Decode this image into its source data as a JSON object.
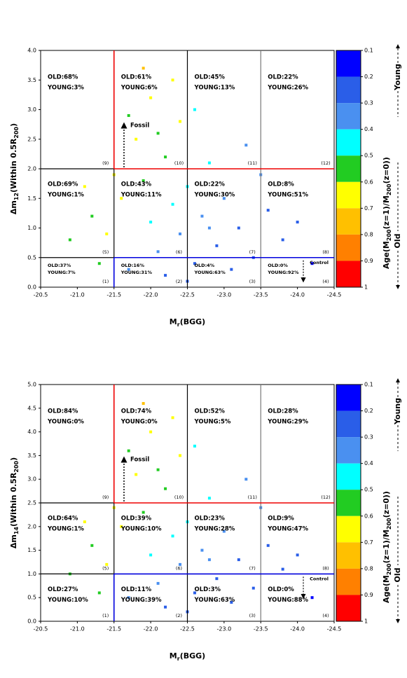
{
  "chart_data": [
    {
      "type": "scatter",
      "x_label": [
        "M",
        "r",
        "(BGG)"
      ],
      "y_label": [
        "Δm",
        "12",
        "(Within 0.5R",
        "200",
        ")"
      ],
      "xlim": [
        -20.5,
        -24.5
      ],
      "xticks": [
        {
          "value": -20.5,
          "label": "-20.5"
        },
        {
          "value": -21,
          "label": "-21.0"
        },
        {
          "value": -21.5,
          "label": "-21.5"
        },
        {
          "value": -22,
          "label": "-22.0"
        },
        {
          "value": -22.5,
          "label": "-22.5"
        },
        {
          "value": -23,
          "label": "-23.0"
        },
        {
          "value": -23.5,
          "label": "-23.5"
        },
        {
          "value": -24,
          "label": "-24.0"
        },
        {
          "value": -24.5,
          "label": "-24.5"
        }
      ],
      "ylim": [
        0,
        4
      ],
      "yticks": [
        {
          "value": 0,
          "label": "0.0"
        },
        0.5,
        {
          "value": 1,
          "label": "1.0"
        },
        1.5,
        {
          "value": 2,
          "label": "2.0"
        },
        2.5,
        {
          "value": 3,
          "label": "3.0"
        },
        3.5,
        {
          "value": 4,
          "label": "4.0"
        }
      ],
      "x": [
        -21.2,
        -21.4,
        -21.6,
        -21.7,
        -21.8,
        -21.9,
        -22.0,
        -22.0,
        -22.1,
        -22.2,
        -22.2,
        -22.3,
        -22.4,
        -22.4,
        -22.5,
        -22.6,
        -22.7,
        -22.8,
        -22.9,
        -23.0,
        -23.1,
        -23.2,
        -23.3,
        -23.4,
        -23.6,
        -23.8,
        -24.0,
        -24.2,
        -21.9,
        -22.3,
        -21.7,
        -22.6,
        -21.3,
        -21.1,
        -20.9,
        -21.5,
        -22.1,
        -22.8,
        -23.5,
        -22.5
      ],
      "y": [
        1.2,
        0.9,
        1.5,
        0.3,
        2.5,
        1.8,
        3.2,
        1.1,
        0.6,
        2.2,
        0.2,
        1.4,
        2.8,
        0.9,
        1.7,
        0.4,
        1.2,
        2.1,
        0.7,
        1.5,
        0.3,
        1.0,
        2.4,
        0.5,
        1.3,
        0.8,
        1.1,
        0.4,
        3.7,
        3.5,
        2.9,
        3.0,
        0.4,
        1.7,
        0.8,
        1.9,
        2.6,
        1.0,
        1.9,
        0.1
      ],
      "age": [
        0.55,
        0.6,
        0.65,
        0.35,
        0.6,
        0.5,
        0.65,
        0.45,
        0.3,
        0.55,
        0.25,
        0.4,
        0.6,
        0.35,
        0.45,
        0.2,
        0.3,
        0.4,
        0.25,
        0.3,
        0.2,
        0.25,
        0.35,
        0.2,
        0.25,
        0.2,
        0.2,
        0.15,
        0.7,
        0.6,
        0.55,
        0.45,
        0.5,
        0.6,
        0.55,
        0.6,
        0.5,
        0.3,
        0.3,
        0.2
      ],
      "regions": [
        {
          "id": "(1)",
          "old": "OLD:37%",
          "young": "YOUNG:7%"
        },
        {
          "id": "(2)",
          "old": "OLD:16%",
          "young": "YOUNG:31%"
        },
        {
          "id": "(3)",
          "old": "OLD:4%",
          "young": "YOUNG:63%"
        },
        {
          "id": "(4)",
          "old": "OLD:0%",
          "young": "YOUNG:92%"
        },
        {
          "id": "(5)",
          "old": "OLD:69%",
          "young": "YOUNG:1%"
        },
        {
          "id": "(6)",
          "old": "OLD:43%",
          "young": "YOUNG:11%"
        },
        {
          "id": "(7)",
          "old": "OLD:22%",
          "young": "YOUNG:30%"
        },
        {
          "id": "(8)",
          "old": "OLD:8%",
          "young": "YOUNG:51%"
        },
        {
          "id": "(9)",
          "old": "OLD:68%",
          "young": "YOUNG:3%"
        },
        {
          "id": "(10)",
          "old": "OLD:61%",
          "young": "YOUNG:6%"
        },
        {
          "id": "(11)",
          "old": "OLD:45%",
          "young": "YOUNG:13%"
        },
        {
          "id": "(12)",
          "old": "OLD:22%",
          "young": "YOUNG:26%"
        }
      ],
      "fossil": "Fossil",
      "control": "Control",
      "colorbar": {
        "label": [
          "Age(M",
          "200",
          "(z=1)/M",
          "200",
          "(z=0))"
        ],
        "young": "Young",
        "old": "Old",
        "lim": [
          0.1,
          1
        ],
        "ticks": [
          0.1,
          0.2,
          0.3,
          0.4,
          0.5,
          0.6,
          0.7,
          0.8,
          0.9,
          1
        ],
        "colors": [
          "#0000ff",
          "#2a5ee8",
          "#4a90f0",
          "#00ffff",
          "#22cc22",
          "#ffff00",
          "#ffc000",
          "#ff8000",
          "#ff0000"
        ]
      }
    },
    {
      "type": "scatter",
      "x_label": [
        "M",
        "r",
        "(BGG)"
      ],
      "y_label": [
        "Δm",
        "14",
        "(Within 0.5R",
        "200",
        ")"
      ],
      "xlim": [
        -20.5,
        -24.5
      ],
      "xticks": [
        {
          "value": -20.5,
          "label": "-20.5"
        },
        {
          "value": -21,
          "label": "-21.0"
        },
        {
          "value": -21.5,
          "label": "-21.5"
        },
        {
          "value": -22,
          "label": "-22.0"
        },
        {
          "value": -22.5,
          "label": "-22.5"
        },
        {
          "value": -23,
          "label": "-23.0"
        },
        {
          "value": -23.5,
          "label": "-23.5"
        },
        {
          "value": -24,
          "label": "-24.0"
        },
        {
          "value": -24.5,
          "label": "-24.5"
        }
      ],
      "ylim": [
        0,
        5
      ],
      "yticks": [
        {
          "value": 0,
          "label": "0.0"
        },
        0.5,
        {
          "value": 1,
          "label": "1.0"
        },
        1.5,
        {
          "value": 2,
          "label": "2.0"
        },
        2.5,
        {
          "value": 3,
          "label": "3.0"
        },
        3.5,
        {
          "value": 4,
          "label": "4.0"
        },
        4.5,
        {
          "value": 5,
          "label": "5.0"
        }
      ],
      "x": [
        -21.2,
        -21.4,
        -21.6,
        -21.7,
        -21.8,
        -21.9,
        -22.0,
        -22.0,
        -22.1,
        -22.2,
        -22.2,
        -22.3,
        -22.4,
        -22.4,
        -22.5,
        -22.6,
        -22.7,
        -22.8,
        -22.9,
        -23.0,
        -23.1,
        -23.2,
        -23.3,
        -23.4,
        -23.6,
        -23.8,
        -24.0,
        -24.2,
        -21.9,
        -22.3,
        -21.7,
        -22.6,
        -21.3,
        -21.1,
        -20.9,
        -21.5,
        -22.1,
        -22.8,
        -23.5,
        -22.5
      ],
      "y": [
        1.6,
        1.2,
        2.0,
        0.5,
        3.1,
        2.3,
        4.0,
        1.4,
        0.8,
        2.8,
        0.3,
        1.8,
        3.5,
        1.2,
        2.1,
        0.6,
        1.5,
        2.6,
        0.9,
        1.9,
        0.4,
        1.3,
        3.0,
        0.7,
        1.6,
        1.1,
        1.4,
        0.5,
        4.6,
        4.3,
        3.6,
        3.7,
        0.6,
        2.1,
        1.0,
        2.4,
        3.2,
        1.3,
        2.4,
        0.2
      ],
      "age": [
        0.55,
        0.6,
        0.65,
        0.35,
        0.6,
        0.5,
        0.65,
        0.45,
        0.3,
        0.55,
        0.25,
        0.4,
        0.6,
        0.35,
        0.45,
        0.2,
        0.3,
        0.4,
        0.25,
        0.3,
        0.2,
        0.25,
        0.35,
        0.2,
        0.25,
        0.2,
        0.2,
        0.15,
        0.7,
        0.6,
        0.55,
        0.45,
        0.5,
        0.6,
        0.55,
        0.6,
        0.5,
        0.3,
        0.3,
        0.2
      ],
      "regions": [
        {
          "id": "(1)",
          "old": "OLD:27%",
          "young": "YOUNG:10%"
        },
        {
          "id": "(2)",
          "old": "OLD:11%",
          "young": "YOUNG:39%"
        },
        {
          "id": "(3)",
          "old": "OLD:3%",
          "young": "YOUNG:63%"
        },
        {
          "id": "(4)",
          "old": "OLD:0%",
          "young": "YOUNG:88%"
        },
        {
          "id": "(5)",
          "old": "OLD:64%",
          "young": "YOUNG:1%"
        },
        {
          "id": "(6)",
          "old": "OLD:39%",
          "young": "YOUNG:10%"
        },
        {
          "id": "(7)",
          "old": "OLD:23%",
          "young": "YOUNG:28%"
        },
        {
          "id": "(8)",
          "old": "OLD:9%",
          "young": "YOUNG:47%"
        },
        {
          "id": "(9)",
          "old": "OLD:84%",
          "young": "YOUNG:0%"
        },
        {
          "id": "(10)",
          "old": "OLD:74%",
          "young": "YOUNG:0%"
        },
        {
          "id": "(11)",
          "old": "OLD:52%",
          "young": "YOUNG:5%"
        },
        {
          "id": "(12)",
          "old": "OLD:28%",
          "young": "YOUNG:29%"
        }
      ],
      "fossil": "Fossil",
      "control": "Control",
      "colorbar": {
        "label": [
          "Age(M",
          "200",
          "(z=1)/M",
          "200",
          "(z=0))"
        ],
        "young": "Young",
        "old": "Old",
        "lim": [
          0.1,
          1
        ],
        "ticks": [
          0.1,
          0.2,
          0.3,
          0.4,
          0.5,
          0.6,
          0.7,
          0.8,
          0.9,
          1
        ],
        "colors": [
          "#0000ff",
          "#2a5ee8",
          "#4a90f0",
          "#00ffff",
          "#22cc22",
          "#ffff00",
          "#ffc000",
          "#ff8000",
          "#ff0000"
        ]
      }
    }
  ]
}
